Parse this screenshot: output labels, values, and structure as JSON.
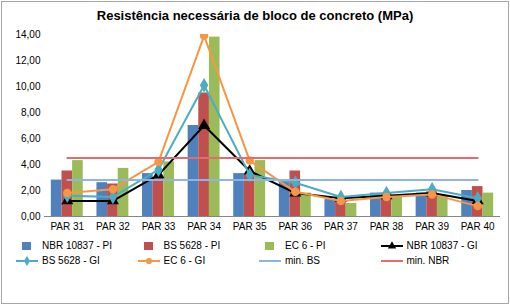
{
  "chart_data": {
    "type": "bar",
    "title": "Resistência necessária de bloco de concreto (MPa)",
    "categories": [
      "PAR 31",
      "PAR 32",
      "PAR 33",
      "PAR 34",
      "PAR 35",
      "PAR 36",
      "PAR 37",
      "PAR 38",
      "PAR 39",
      "PAR 40"
    ],
    "series": [
      {
        "name": "NBR 10837 - PI",
        "type": "bar",
        "color": "#4f81bd",
        "values": [
          2.8,
          2.6,
          3.3,
          7.0,
          3.3,
          2.7,
          1.3,
          1.8,
          1.8,
          2.0
        ]
      },
      {
        "name": "BS 5628 - PI",
        "type": "bar",
        "color": "#c0504d",
        "values": [
          3.5,
          2.5,
          3.0,
          9.5,
          3.3,
          3.5,
          1.5,
          1.8,
          1.9,
          2.3
        ]
      },
      {
        "name": "EC 6 - PI",
        "type": "bar",
        "color": "#9bbb59",
        "values": [
          4.3,
          3.7,
          4.2,
          13.8,
          4.3,
          1.8,
          1.0,
          1.6,
          1.6,
          1.8
        ]
      },
      {
        "name": "NBR 10837 - GI",
        "type": "line",
        "color": "#000000",
        "marker": "triangle",
        "values": [
          1.2,
          1.2,
          3.2,
          7.0,
          3.5,
          1.8,
          1.4,
          1.6,
          1.8,
          1.2
        ]
      },
      {
        "name": "BS 5628 - GI",
        "type": "line",
        "color": "#4bacc6",
        "marker": "diamond",
        "values": [
          1.6,
          1.5,
          3.6,
          10.1,
          3.2,
          2.6,
          1.5,
          1.8,
          2.1,
          1.4
        ]
      },
      {
        "name": "EC 6 - GI",
        "type": "line",
        "color": "#f79646",
        "marker": "circle",
        "values": [
          1.8,
          2.1,
          4.2,
          13.9,
          4.3,
          1.9,
          1.2,
          1.5,
          1.7,
          0.8
        ]
      },
      {
        "name": "min. BS",
        "type": "line",
        "color": "#8db4e2",
        "marker": "none",
        "values": [
          2.8,
          2.8,
          2.8,
          2.8,
          2.8,
          2.8,
          2.8,
          2.8,
          2.8,
          2.8
        ]
      },
      {
        "name": "min. NBR",
        "type": "line",
        "color": "#e46c6c",
        "marker": "none",
        "values": [
          4.5,
          4.5,
          4.5,
          4.5,
          4.5,
          4.5,
          4.5,
          4.5,
          4.5,
          4.5
        ]
      }
    ],
    "ylim": [
      0,
      14
    ],
    "yticks": [
      {
        "value": 0,
        "label": "0,00"
      },
      {
        "value": 2,
        "label": "2,00"
      },
      {
        "value": 4,
        "label": "4,00"
      },
      {
        "value": 6,
        "label": "6,00"
      },
      {
        "value": 8,
        "label": "8,00"
      },
      {
        "value": 10,
        "label": "10,00"
      },
      {
        "value": 12,
        "label": "12,00"
      },
      {
        "value": 14,
        "label": "14,00"
      }
    ],
    "grid": false,
    "legend": "bottom"
  }
}
